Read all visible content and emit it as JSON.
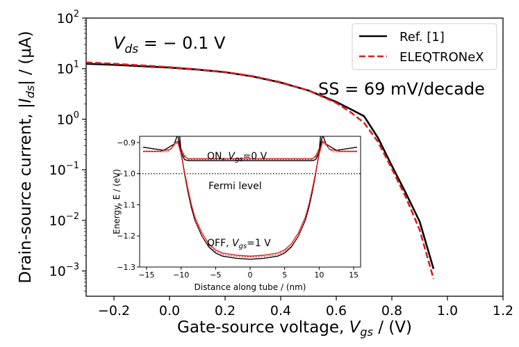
{
  "colors": {
    "ref": "#000000",
    "eleq": "#e31a1c",
    "fermi": "#000000",
    "background": "#ffffff"
  },
  "chart_data": [
    {
      "type": "line",
      "panel": "main",
      "xlabel_prefix": "Gate-source voltage, ",
      "xlabel_var": "V",
      "xlabel_sub": "gs",
      "xlabel_suffix": " / (V)",
      "ylabel_prefix": "Drain-source current, |",
      "ylabel_var": "I",
      "ylabel_sub": "ds",
      "ylabel_suffix": "| / (μA)",
      "xlim": [
        -0.3,
        1.2
      ],
      "ylim_log10": [
        -3.5,
        2
      ],
      "yscale": "log",
      "xticks": [
        {
          "value": -0.2,
          "label": "−0.2"
        },
        {
          "value": 0.0,
          "label": "0.0"
        },
        {
          "value": 0.2,
          "label": "0.2"
        },
        {
          "value": 0.4,
          "label": "0.4"
        },
        {
          "value": 0.6,
          "label": "0.6"
        },
        {
          "value": 0.8,
          "label": "0.8"
        },
        {
          "value": 1.0,
          "label": "1.0"
        },
        {
          "value": 1.2,
          "label": "1.2"
        }
      ],
      "yticks": [
        {
          "exp": 2,
          "base": "10",
          "sup": "2"
        },
        {
          "exp": 1,
          "base": "10",
          "sup": "1"
        },
        {
          "exp": 0,
          "base": "10",
          "sup": "0"
        },
        {
          "exp": -1,
          "base": "10",
          "sup": "−1"
        },
        {
          "exp": -2,
          "base": "10",
          "sup": "−2"
        },
        {
          "exp": -3,
          "base": "10",
          "sup": "−3"
        }
      ],
      "annotations": {
        "vds_var": "V",
        "vds_sub": "ds",
        "vds_value": " = − 0.1 V",
        "ss": "SS = 69 mV/decade"
      },
      "legend": {
        "position": "upper right",
        "entries": [
          {
            "label": "Ref. [1]",
            "series": "ref"
          },
          {
            "label": "ELEQTRONeX",
            "series": "eleq"
          }
        ]
      },
      "series": [
        {
          "name": "Ref. [1]",
          "key": "ref",
          "style": "solid",
          "x": [
            -0.3,
            -0.2,
            -0.1,
            0.0,
            0.1,
            0.2,
            0.3,
            0.4,
            0.5,
            0.6,
            0.65,
            0.7,
            0.75,
            0.8,
            0.85,
            0.9,
            0.95
          ],
          "y": [
            12.5,
            11.9,
            11.2,
            10.5,
            9.6,
            8.5,
            7.0,
            5.3,
            3.7,
            2.2,
            1.6,
            1.15,
            0.43,
            0.12,
            0.035,
            0.0095,
            0.0011
          ]
        },
        {
          "name": "ELEQTRONeX",
          "key": "eleq",
          "style": "dashed",
          "x": [
            -0.3,
            -0.2,
            -0.1,
            0.0,
            0.1,
            0.2,
            0.3,
            0.4,
            0.5,
            0.6,
            0.65,
            0.7,
            0.75,
            0.8,
            0.85,
            0.9,
            0.95
          ],
          "y": [
            13.3,
            12.5,
            11.6,
            10.7,
            9.7,
            8.6,
            7.1,
            5.4,
            3.7,
            2.1,
            1.4,
            0.85,
            0.36,
            0.105,
            0.029,
            0.0065,
            0.0007
          ]
        }
      ]
    },
    {
      "type": "line",
      "panel": "inset",
      "xlabel": "Distance along tube / (nm)",
      "ylabel": "Energy, E / (eV)",
      "xlim": [
        -16,
        16
      ],
      "ylim": [
        -1.3,
        -0.88
      ],
      "xticks": [
        {
          "value": -15,
          "label": "−15"
        },
        {
          "value": -10,
          "label": "−10"
        },
        {
          "value": -5,
          "label": "−5"
        },
        {
          "value": 0,
          "label": "0"
        },
        {
          "value": 5,
          "label": "5"
        },
        {
          "value": 10,
          "label": "10"
        },
        {
          "value": 15,
          "label": "15"
        }
      ],
      "yticks": [
        {
          "value": -0.9,
          "label": "−0.9"
        },
        {
          "value": -1.0,
          "label": "−1.0"
        },
        {
          "value": -1.1,
          "label": "−1.1"
        },
        {
          "value": -1.2,
          "label": "−1.2"
        },
        {
          "value": -1.3,
          "label": "−1.3"
        }
      ],
      "annotations": {
        "on_prefix": "ON, ",
        "on_var": "V",
        "on_sub": "gs",
        "on_value": "=0 V",
        "fermi": "Fermi level",
        "off_prefix": "OFF, ",
        "off_var": "V",
        "off_sub": "gs",
        "off_value": "=1 V"
      },
      "fermi_level": -1.0,
      "series": [
        {
          "name": "Ref ON",
          "key": "ref",
          "style": "solid",
          "x": [
            -15.5,
            -14,
            -12.5,
            -11,
            -10.5,
            -10.2,
            -10,
            -9.5,
            -9,
            -7,
            -5,
            0,
            5,
            7,
            9,
            9.5,
            10,
            10.2,
            10.5,
            11,
            12.5,
            14,
            15.5
          ],
          "y": [
            -0.915,
            -0.92,
            -0.925,
            -0.905,
            -0.875,
            -0.88,
            -0.93,
            -0.955,
            -0.958,
            -0.958,
            -0.958,
            -0.958,
            -0.958,
            -0.958,
            -0.958,
            -0.955,
            -0.93,
            -0.88,
            -0.875,
            -0.905,
            -0.925,
            -0.92,
            -0.915
          ]
        },
        {
          "name": "ELEQTRONeX ON",
          "key": "eleq",
          "style": "solid",
          "x": [
            -15.5,
            -13,
            -11.5,
            -11,
            -10.5,
            -10,
            -9.5,
            -9,
            -5,
            0,
            5,
            9,
            9.5,
            10,
            10.5,
            11,
            11.5,
            13,
            15.5
          ],
          "y": [
            -0.928,
            -0.928,
            -0.922,
            -0.905,
            -0.895,
            -0.92,
            -0.945,
            -0.952,
            -0.952,
            -0.952,
            -0.952,
            -0.952,
            -0.945,
            -0.92,
            -0.895,
            -0.905,
            -0.922,
            -0.928,
            -0.928
          ]
        },
        {
          "name": "ELEQTRONeX ON dotted",
          "key": "eleq",
          "style": "dotted",
          "x": [
            -15.5,
            -12,
            -11,
            -10.5,
            -10,
            -9,
            -5,
            0,
            5,
            9,
            10,
            10.5,
            11,
            12,
            15.5
          ],
          "y": [
            -0.93,
            -0.93,
            -0.91,
            -0.9,
            -0.925,
            -0.955,
            -0.955,
            -0.955,
            -0.955,
            -0.955,
            -0.925,
            -0.9,
            -0.91,
            -0.93,
            -0.93
          ]
        },
        {
          "name": "Ref OFF",
          "key": "ref",
          "style": "solid",
          "x": [
            -10.5,
            -10,
            -9.5,
            -9,
            -8.5,
            -8,
            -7,
            -6,
            -5,
            -4,
            -2,
            0,
            2,
            4,
            5,
            6,
            7,
            8,
            8.5,
            9,
            9.5,
            10,
            10.5
          ],
          "y": [
            -0.875,
            -0.93,
            -1.0,
            -1.06,
            -1.11,
            -1.15,
            -1.2,
            -1.235,
            -1.255,
            -1.265,
            -1.272,
            -1.275,
            -1.272,
            -1.265,
            -1.255,
            -1.235,
            -1.2,
            -1.15,
            -1.11,
            -1.06,
            -1.0,
            -0.93,
            -0.875
          ]
        },
        {
          "name": "ELEQTRONeX OFF",
          "key": "eleq",
          "style": "solid",
          "x": [
            -10.5,
            -10,
            -9.5,
            -9,
            -8.5,
            -8,
            -7,
            -6,
            -5,
            -4,
            -2,
            0,
            2,
            4,
            5,
            6,
            7,
            8,
            8.5,
            9,
            9.5,
            10,
            10.5
          ],
          "y": [
            -0.895,
            -0.935,
            -0.995,
            -1.05,
            -1.1,
            -1.14,
            -1.19,
            -1.225,
            -1.245,
            -1.255,
            -1.262,
            -1.265,
            -1.262,
            -1.255,
            -1.245,
            -1.225,
            -1.19,
            -1.14,
            -1.1,
            -1.05,
            -0.995,
            -0.935,
            -0.895
          ]
        },
        {
          "name": "ELEQTRONeX OFF dotted",
          "key": "eleq",
          "style": "dotted",
          "x": [
            -10.5,
            -10,
            -9,
            -8,
            -7,
            -6,
            -5,
            -4,
            -2,
            0,
            2,
            4,
            5,
            6,
            7,
            8,
            9,
            10,
            10.5
          ],
          "y": [
            -0.9,
            -0.94,
            -1.06,
            -1.15,
            -1.2,
            -1.232,
            -1.25,
            -1.26,
            -1.266,
            -1.268,
            -1.266,
            -1.26,
            -1.25,
            -1.232,
            -1.2,
            -1.15,
            -1.06,
            -0.94,
            -0.9
          ]
        }
      ]
    }
  ]
}
